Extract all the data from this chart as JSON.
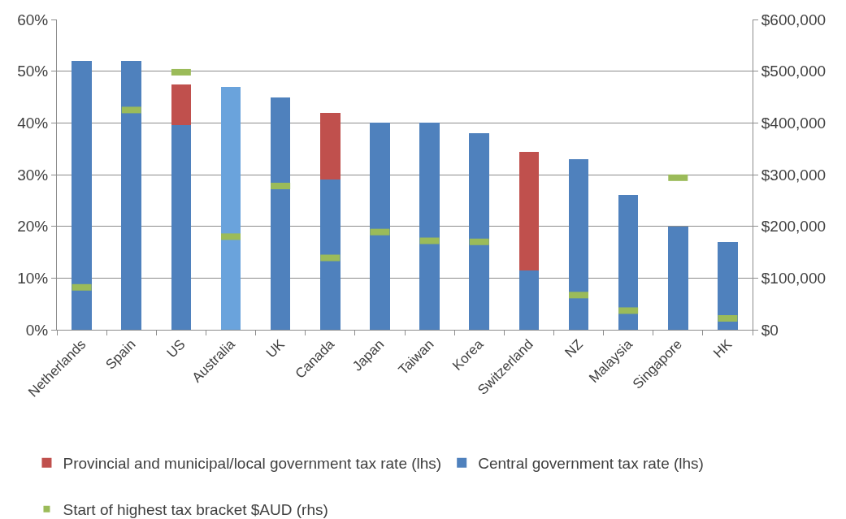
{
  "chart_data": {
    "type": "bar",
    "stacked": true,
    "categories": [
      "Netherlands",
      "Spain",
      "US",
      "Australia",
      "UK",
      "Canada",
      "Japan",
      "Taiwan",
      "Korea",
      "Switzerland",
      "NZ",
      "Malaysia",
      "Singapore",
      "HK"
    ],
    "series": [
      {
        "name": "Central government tax rate (lhs)",
        "color": "#4f81bd",
        "colors": [
          "#4f81bd",
          "#4f81bd",
          "#4f81bd",
          "#6aa3dc",
          "#4f81bd",
          "#4f81bd",
          "#4f81bd",
          "#4f81bd",
          "#4f81bd",
          "#4f81bd",
          "#4f81bd",
          "#4f81bd",
          "#4f81bd",
          "#4f81bd"
        ],
        "values": [
          52,
          52,
          39.6,
          47,
          45,
          29,
          40,
          40,
          38,
          11.5,
          33,
          26,
          20,
          17
        ]
      },
      {
        "name": "Provincial and municipal/local government tax rate (lhs)",
        "color": "#c0504d",
        "values": [
          null,
          null,
          7.8,
          null,
          null,
          13,
          null,
          null,
          null,
          22.9,
          null,
          null,
          null,
          null
        ]
      },
      {
        "name": "Start of highest tax bracket $AUD (rhs)",
        "type": "scatter",
        "axis": "y2",
        "color": "#9bbb59",
        "values": [
          82000,
          425000,
          498000,
          180000,
          278000,
          139000,
          189000,
          172000,
          170000,
          null,
          67000,
          37000,
          294000,
          22000
        ]
      }
    ],
    "ylim": [
      0,
      60
    ],
    "yticks": [
      {
        "value": 0,
        "label": "0%"
      },
      {
        "value": 10,
        "label": "10%"
      },
      {
        "value": 20,
        "label": "20%"
      },
      {
        "value": 30,
        "label": "30%"
      },
      {
        "value": 40,
        "label": "40%"
      },
      {
        "value": 50,
        "label": "50%"
      },
      {
        "value": 60,
        "label": "60%"
      }
    ],
    "y2lim": [
      0,
      600000
    ],
    "y2ticks": [
      {
        "value": 0,
        "label": "$0"
      },
      {
        "value": 100000,
        "label": "$100,000"
      },
      {
        "value": 200000,
        "label": "$200,000"
      },
      {
        "value": 300000,
        "label": "$300,000"
      },
      {
        "value": 400000,
        "label": "$400,000"
      },
      {
        "value": 500000,
        "label": "$500,000"
      },
      {
        "value": 600000,
        "label": "$600,000"
      }
    ],
    "grid": "y",
    "legend": "bottom"
  }
}
